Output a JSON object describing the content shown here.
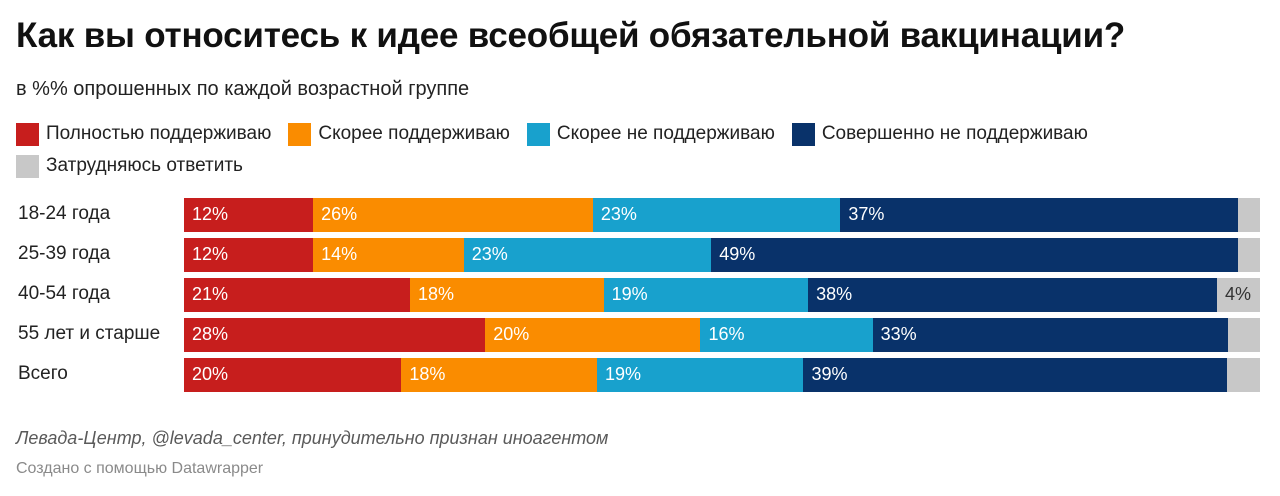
{
  "title": "Как вы относитесь к идее всеобщей обязательной вакцинации?",
  "subtitle": "в %% опрошенных по каждой возрастной группе",
  "legend": [
    {
      "label": "Полностью поддерживаю",
      "color": "#c71e1d"
    },
    {
      "label": "Скорее поддерживаю",
      "color": "#fa8c00"
    },
    {
      "label": "Скорее не поддерживаю",
      "color": "#18a1cd"
    },
    {
      "label": "Совершенно не поддерживаю",
      "color": "#09326a"
    },
    {
      "label": "Затрудняюсь ответить",
      "color": "#c8c8c8"
    }
  ],
  "chart_data": {
    "type": "bar",
    "orientation": "horizontal",
    "stacked": true,
    "categories": [
      "18-24 года",
      "25-39 года",
      "40-54 года",
      "55 лет и старше",
      "Всего"
    ],
    "series": [
      {
        "name": "Полностью поддерживаю",
        "color": "#c71e1d",
        "values": [
          12,
          12,
          21,
          28,
          20
        ],
        "labels": [
          "12%",
          "12%",
          "21%",
          "28%",
          "20%"
        ]
      },
      {
        "name": "Скорее поддерживаю",
        "color": "#fa8c00",
        "values": [
          26,
          14,
          18,
          20,
          18
        ],
        "labels": [
          "26%",
          "14%",
          "18%",
          "20%",
          "18%"
        ]
      },
      {
        "name": "Скорее не поддерживаю",
        "color": "#18a1cd",
        "values": [
          23,
          23,
          19,
          16,
          19
        ],
        "labels": [
          "23%",
          "23%",
          "19%",
          "16%",
          "19%"
        ]
      },
      {
        "name": "Совершенно не поддерживаю",
        "color": "#09326a",
        "values": [
          37,
          49,
          38,
          33,
          39
        ],
        "labels": [
          "37%",
          "49%",
          "38%",
          "33%",
          "39%"
        ]
      },
      {
        "name": "Затрудняюсь ответить",
        "color": "#c8c8c8",
        "values": [
          2,
          2,
          4,
          3,
          3
        ],
        "labels": [
          "",
          "",
          "4%",
          "",
          ""
        ]
      }
    ]
  },
  "source": "Левада-Центр, @levada_center, принудительно признан иноагентом",
  "credit": "Создано с помощью Datawrapper"
}
